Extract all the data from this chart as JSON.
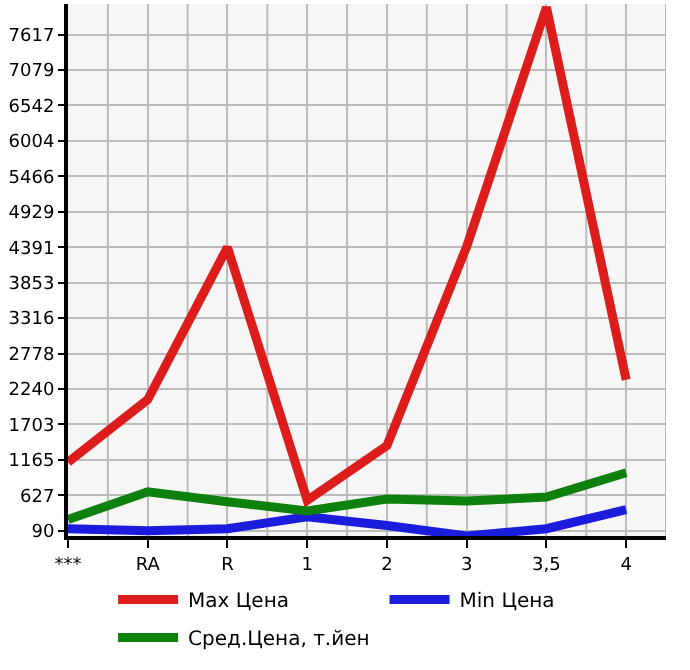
{
  "chart_data": {
    "type": "line",
    "categories": [
      "***",
      "RA",
      "R",
      "1",
      "2",
      "3",
      "3,5",
      "4"
    ],
    "series": [
      {
        "name": "Max Цена",
        "color": "#dd1c1c",
        "values": [
          1130,
          2080,
          4390,
          550,
          1380,
          4400,
          8030,
          2380
        ]
      },
      {
        "name": "Min Цена",
        "color": "#1c1cdd",
        "values": [
          120,
          90,
          120,
          300,
          170,
          10,
          120,
          410
        ]
      },
      {
        "name": "Сред.Цена, т.йен",
        "color": "#0d800d",
        "values": [
          260,
          680,
          530,
          390,
          570,
          540,
          600,
          970
        ]
      }
    ],
    "ylim": [
      10,
      8080
    ],
    "yticks": [
      90,
      627,
      1165,
      1703,
      2240,
      2778,
      3316,
      3853,
      4391,
      4929,
      5466,
      6004,
      6542,
      7079,
      7617
    ],
    "grid": true,
    "legend": "bottom",
    "marker": "none",
    "line_style": "solid"
  }
}
